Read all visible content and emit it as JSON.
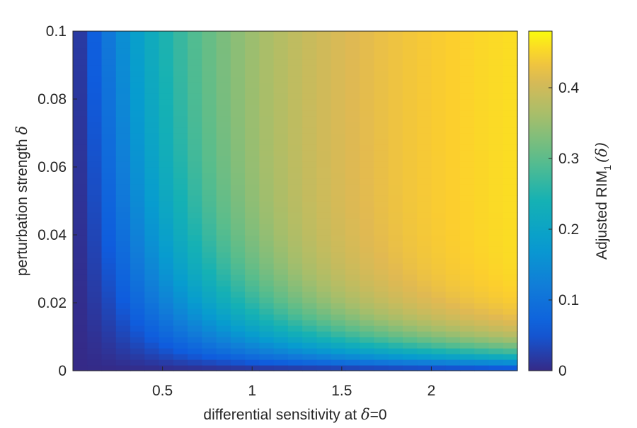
{
  "chart_data": {
    "type": "heatmap",
    "xlabel_prefix": "differential sensitivity at ",
    "xlabel_symbol": "δ",
    "xlabel_suffix": "=0",
    "ylabel_prefix": "perturbation strength ",
    "ylabel_symbol": "δ",
    "colorbar_label_prefix": "Adjusted RIM",
    "colorbar_label_sub": "1",
    "colorbar_label_suffix": "(δ)",
    "xlim": [
      0.0,
      2.48
    ],
    "ylim": [
      0,
      0.1
    ],
    "clim": [
      0,
      0.48
    ],
    "x_ticks": [
      {
        "value": 0.5,
        "label": "0.5"
      },
      {
        "value": 1,
        "label": "1"
      },
      {
        "value": 1.5,
        "label": "1.5"
      },
      {
        "value": 2,
        "label": "2"
      }
    ],
    "y_ticks": [
      {
        "value": 0,
        "label": "0"
      },
      {
        "value": 0.02,
        "label": "0.02"
      },
      {
        "value": 0.04,
        "label": "0.04"
      },
      {
        "value": 0.06,
        "label": "0.06"
      },
      {
        "value": 0.08,
        "label": "0.08"
      },
      {
        "value": 0.1,
        "label": "0.1"
      }
    ],
    "colorbar_ticks": [
      {
        "value": 0,
        "label": "0"
      },
      {
        "value": 0.1,
        "label": "0.1"
      },
      {
        "value": 0.2,
        "label": "0.2"
      },
      {
        "value": 0.3,
        "label": "0.3"
      },
      {
        "value": 0.4,
        "label": "0.4"
      }
    ],
    "colormap": "parula",
    "x_columns": [
      0.04,
      0.12,
      0.2,
      0.28,
      0.36,
      0.44,
      0.52,
      0.6,
      0.68,
      0.76,
      0.84,
      0.92,
      1.0,
      1.08,
      1.16,
      1.24,
      1.32,
      1.4,
      1.48,
      1.56,
      1.64,
      1.72,
      1.8,
      1.88,
      1.96,
      2.04,
      2.12,
      2.2,
      2.28,
      2.36,
      2.44
    ],
    "value_model": {
      "form": "vmax * (1 - exp(-x * delta / k))",
      "vmax_low": 0.06,
      "vmax_high": 0.48,
      "vmax_rate": 1.2,
      "k": 0.015
    }
  }
}
